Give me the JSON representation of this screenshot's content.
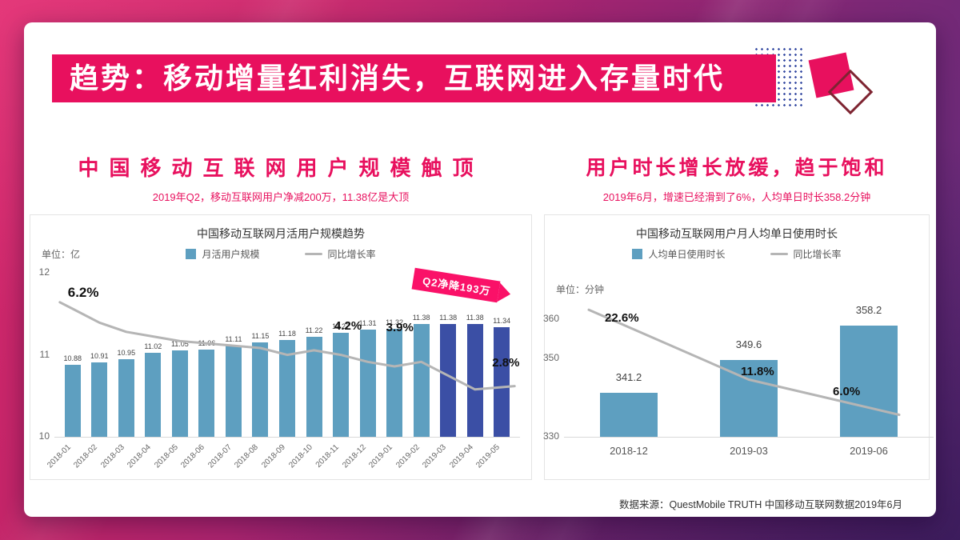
{
  "slide": {
    "banner_title": "趋势：移动增量红利消失，互联网进入存量时代",
    "footer_source": "数据来源：QuestMobile TRUTH 中国移动互联网数据2019年6月"
  },
  "sections": {
    "left": {
      "title": "中国移动互联网用户规模触顶",
      "subtitle": "2019年Q2，移动互联网用户净减200万，11.38亿是大顶"
    },
    "right": {
      "title": "用户时长增长放缓，趋于饱和",
      "subtitle": "2019年6月，增速已经滑到了6%，人均单日时长358.2分钟"
    }
  },
  "colors": {
    "accent_pink": "#e8105e",
    "callout_pink": "#fa1168",
    "bar_light": "#5e9fc0",
    "bar_dark": "#3b4fa5",
    "growth_line": "#b5b5b5"
  },
  "chart_data": [
    {
      "id": "left",
      "type": "bar",
      "title": "中国移动互联网月活用户规模趋势",
      "unit": "单位：亿",
      "legend": [
        {
          "label": "月活用户规模",
          "swatch": "bar"
        },
        {
          "label": "同比增长率",
          "swatch": "line"
        }
      ],
      "categories": [
        "2018-01",
        "2018-02",
        "2018-03",
        "2018-04",
        "2018-05",
        "2018-06",
        "2018-07",
        "2018-08",
        "2018-09",
        "2018-10",
        "2018-11",
        "2018-12",
        "2019-01",
        "2019-02",
        "2019-03",
        "2019-04",
        "2019-05"
      ],
      "series": [
        {
          "name": "月活用户规模",
          "type": "bar",
          "values": [
            10.88,
            10.91,
            10.95,
            11.02,
            11.05,
            11.06,
            11.11,
            11.15,
            11.18,
            11.22,
            11.27,
            11.31,
            11.32,
            11.38,
            11.38,
            11.38,
            11.34
          ]
        },
        {
          "name": "同比增长率",
          "type": "line",
          "values": [
            6.2,
            5.6,
            5.2,
            5.0,
            4.8,
            4.7,
            4.6,
            4.5,
            4.2,
            4.4,
            4.2,
            3.9,
            3.7,
            3.9,
            3.3,
            2.7,
            2.8
          ]
        }
      ],
      "highlight_from_index": 14,
      "ylim": [
        10,
        12
      ],
      "yticks": [
        12,
        11,
        10
      ],
      "annotations": [
        {
          "index": 0,
          "label": "6.2%"
        },
        {
          "index": 10,
          "label": "4.2%"
        },
        {
          "index": 13,
          "label": "3.9%"
        },
        {
          "index": 16,
          "label": "2.8%"
        }
      ],
      "callout": "Q2净降193万",
      "legend_position": "top",
      "grid": false
    },
    {
      "id": "right",
      "type": "bar",
      "title": "中国移动互联网用户月人均单日使用时长",
      "unit": "单位：分钟",
      "legend": [
        {
          "label": "人均单日使用时长",
          "swatch": "bar"
        },
        {
          "label": "同比增长率",
          "swatch": "line"
        }
      ],
      "categories": [
        "2018-12",
        "2019-03",
        "2019-06"
      ],
      "series": [
        {
          "name": "人均单日使用时长",
          "type": "bar",
          "values": [
            341.2,
            349.6,
            358.2
          ]
        },
        {
          "name": "同比增长率",
          "type": "line",
          "values": [
            22.6,
            11.8,
            6.0
          ]
        }
      ],
      "highlight_from_index": null,
      "ylim": [
        330,
        365
      ],
      "yticks": [
        360,
        350,
        330
      ],
      "annotations": [
        {
          "index": 0,
          "label": "22.6%"
        },
        {
          "index": 1,
          "label": "11.8%"
        },
        {
          "index": 2,
          "label": "6.0%"
        }
      ],
      "legend_position": "top",
      "grid": false
    }
  ]
}
